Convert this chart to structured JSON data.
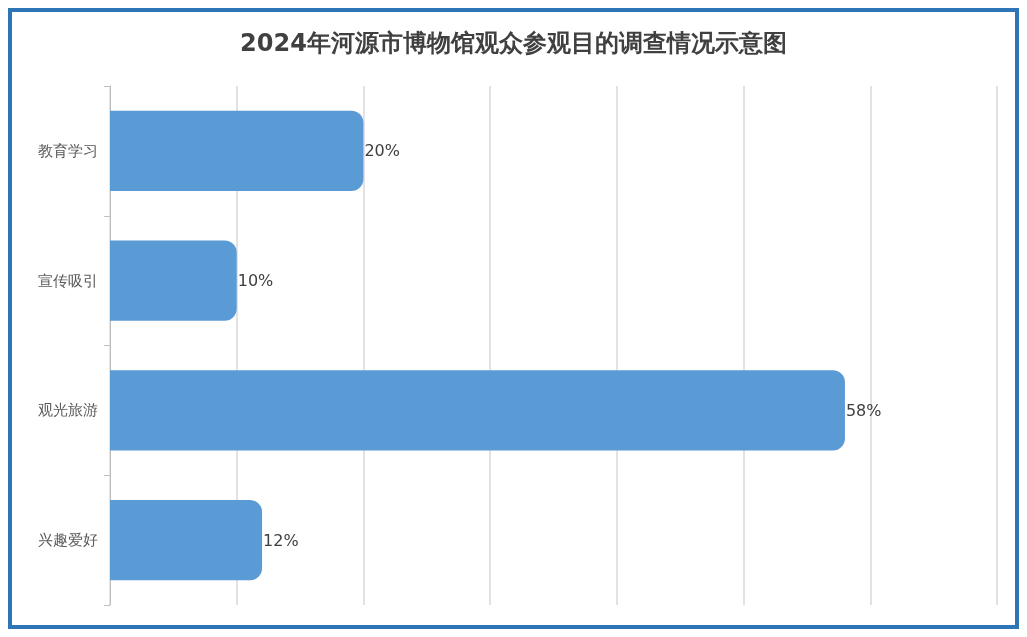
{
  "chart_data": {
    "type": "bar",
    "orientation": "horizontal",
    "title": "2024年河源市博物馆观众参观目的调查情况示意图",
    "categories": [
      "教育学习",
      "宣传吸引",
      "观光旅游",
      "兴趣爱好"
    ],
    "values": [
      20,
      10,
      58,
      12
    ],
    "value_labels": [
      "20%",
      "10%",
      "58%",
      "12%"
    ],
    "color": "#5b9bd5",
    "xlim": [
      0,
      70
    ],
    "xticks": [
      {
        "value": 0,
        "label": null
      },
      {
        "value": 10,
        "label": null
      },
      {
        "value": 20,
        "label": null
      },
      {
        "value": 30,
        "label": null
      },
      {
        "value": 40,
        "label": null
      },
      {
        "value": 50,
        "label": null
      },
      {
        "value": 60,
        "label": null
      },
      {
        "value": 70,
        "label": null
      }
    ],
    "grid": "x",
    "tick_labels": "y"
  }
}
